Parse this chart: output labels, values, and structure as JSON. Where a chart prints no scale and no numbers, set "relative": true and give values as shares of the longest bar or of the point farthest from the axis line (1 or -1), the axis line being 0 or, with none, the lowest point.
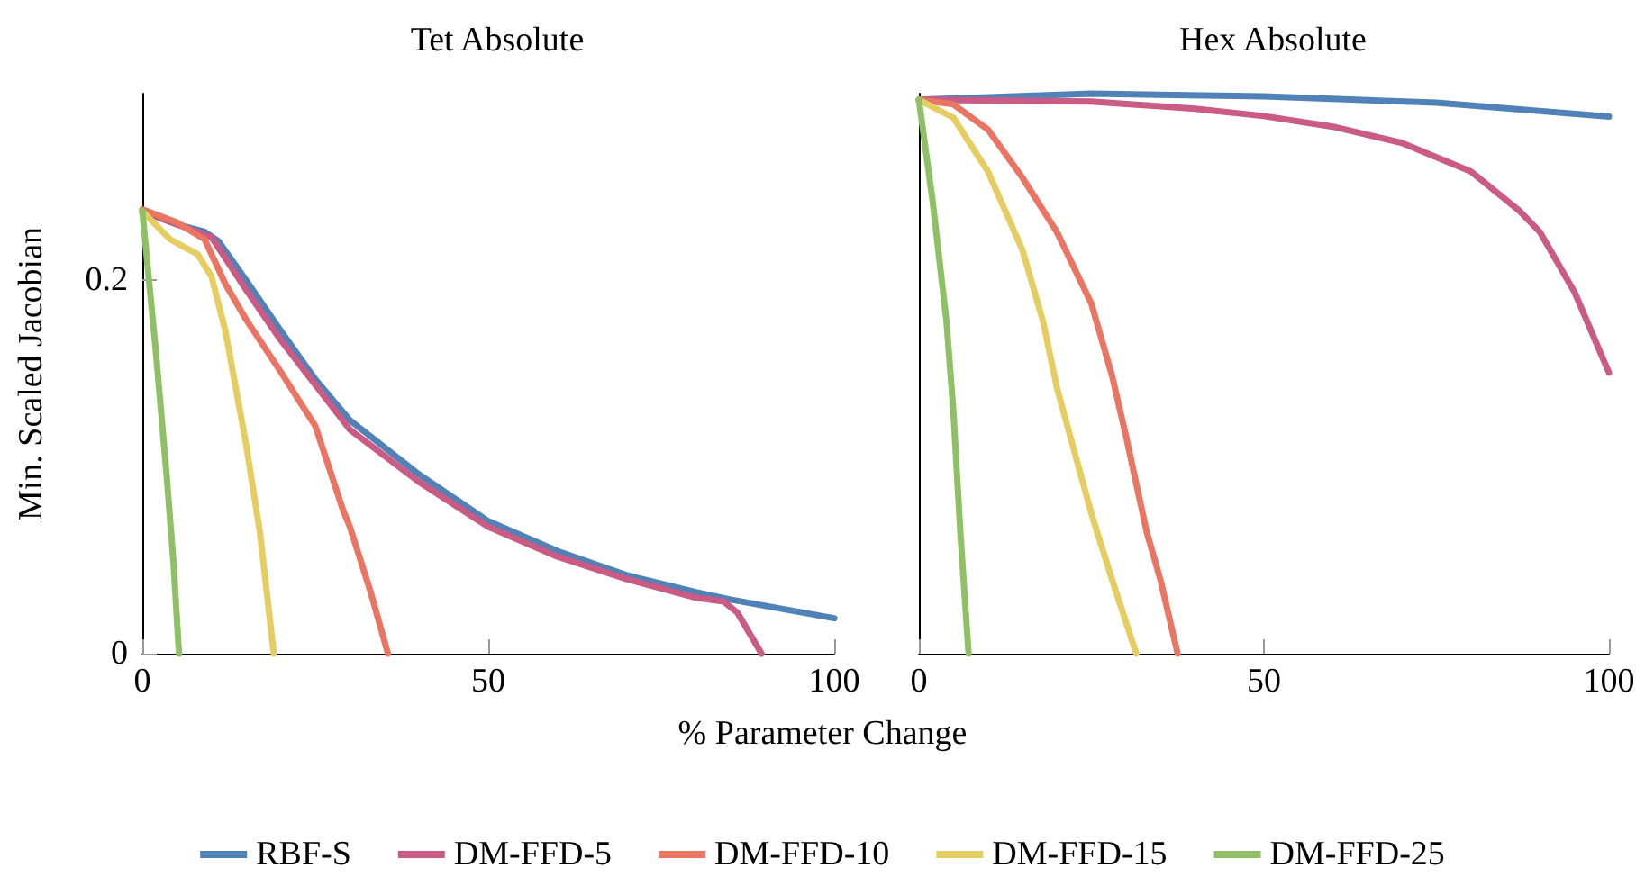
{
  "chart_data": [
    {
      "type": "line",
      "title": "Tet Absolute",
      "xlabel": "% Parameter Change",
      "ylabel": "Min. Scaled Jacobian",
      "xlim": [
        0,
        100
      ],
      "xticks": [
        0,
        50,
        100
      ],
      "ylim": [
        0,
        0.3
      ],
      "yticks": [
        0,
        0.2
      ],
      "legend": "bottom",
      "grid": false,
      "marker": "none",
      "line_style": "solid",
      "series": [
        {
          "name": "RBF-S",
          "color": "#5082b8",
          "x": [
            0,
            5,
            9,
            11,
            15,
            20,
            25,
            30,
            40,
            50,
            60,
            70,
            80,
            85,
            100
          ],
          "values": [
            0.237,
            0.23,
            0.226,
            0.221,
            0.2,
            0.173,
            0.147,
            0.125,
            0.096,
            0.071,
            0.055,
            0.042,
            0.033,
            0.029,
            0.019
          ]
        },
        {
          "name": "DM-FFD-5",
          "color": "#c95b85",
          "x": [
            0,
            10,
            15,
            20,
            30,
            40,
            50,
            60,
            70,
            80,
            84,
            86,
            89.5
          ],
          "values": [
            0.237,
            0.223,
            0.195,
            0.168,
            0.12,
            0.092,
            0.068,
            0.052,
            0.04,
            0.03,
            0.028,
            0.022,
            0
          ]
        },
        {
          "name": "DM-FFD-10",
          "color": "#ea7563",
          "x": [
            0,
            5,
            9,
            12,
            15,
            20,
            25,
            29,
            30,
            33,
            35.5
          ],
          "values": [
            0.238,
            0.231,
            0.222,
            0.198,
            0.179,
            0.151,
            0.122,
            0.077,
            0.068,
            0.033,
            0
          ]
        },
        {
          "name": "DM-FFD-15",
          "color": "#e6cd61",
          "x": [
            0,
            4,
            8,
            10,
            12,
            15,
            17,
            19
          ],
          "values": [
            0.237,
            0.222,
            0.214,
            0.202,
            0.173,
            0.112,
            0.065,
            0
          ]
        },
        {
          "name": "DM-FFD-25",
          "color": "#8fc065",
          "x": [
            0,
            2,
            3.5,
            4.5,
            5.3
          ],
          "values": [
            0.237,
            0.16,
            0.096,
            0.049,
            0
          ]
        }
      ]
    },
    {
      "type": "line",
      "title": "Hex Absolute",
      "xlim": [
        0,
        100
      ],
      "xticks": [
        0,
        50,
        100
      ],
      "relative": true,
      "tick_labels": "x",
      "grid": false,
      "marker": "none",
      "line_style": "solid",
      "series": [
        {
          "name": "RBF-S",
          "color": "#5082b8",
          "x": [
            0,
            25,
            50,
            75,
            100
          ],
          "values": [
            0.989,
            1,
            0.995,
            0.984,
            0.959
          ]
        },
        {
          "name": "DM-FFD-5",
          "color": "#c95b85",
          "x": [
            0,
            25,
            40,
            50,
            60,
            70,
            80,
            87,
            90,
            95,
            100
          ],
          "values": [
            0.989,
            0.986,
            0.973,
            0.96,
            0.941,
            0.912,
            0.861,
            0.791,
            0.753,
            0.646,
            0.502
          ]
        },
        {
          "name": "DM-FFD-10",
          "color": "#ea7563",
          "x": [
            0,
            5,
            10,
            15,
            20,
            25,
            28,
            30,
            33,
            35,
            37.5
          ],
          "values": [
            0.989,
            0.981,
            0.936,
            0.85,
            0.753,
            0.625,
            0.496,
            0.389,
            0.218,
            0.132,
            0
          ]
        },
        {
          "name": "DM-FFD-15",
          "color": "#e6cd61",
          "x": [
            0,
            5,
            10,
            15,
            18,
            20,
            25,
            28,
            31.5
          ],
          "values": [
            0.989,
            0.957,
            0.861,
            0.721,
            0.593,
            0.475,
            0.25,
            0.132,
            0
          ]
        },
        {
          "name": "DM-FFD-25",
          "color": "#8fc065",
          "x": [
            0,
            2,
            4,
            5,
            6,
            7.2
          ],
          "values": [
            0.989,
            0.807,
            0.593,
            0.432,
            0.218,
            0
          ]
        }
      ]
    }
  ]
}
